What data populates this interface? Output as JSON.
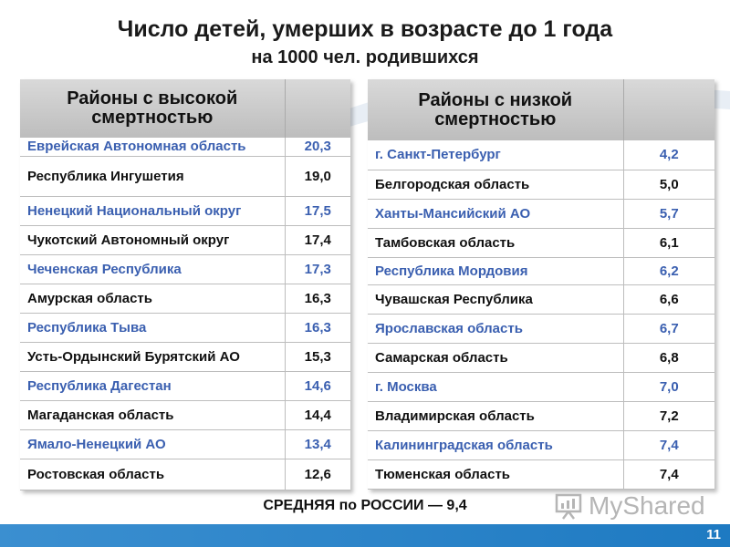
{
  "title": "Число детей, умерших в возрасте до 1 года",
  "subtitle": "на 1000 чел. родившихся",
  "high_table": {
    "header": "Районы с высокой смертностью",
    "rows": [
      {
        "name": "Еврейская Автономная область",
        "value": "20,3",
        "style": "blue"
      },
      {
        "name": "Республика Ингушетия",
        "value": "19,0",
        "style": "black"
      },
      {
        "name": "Ненецкий Национальный округ",
        "value": "17,5",
        "style": "blue"
      },
      {
        "name": "Чукотский Автономный округ",
        "value": "17,4",
        "style": "black"
      },
      {
        "name": "Чеченская Республика",
        "value": "17,3",
        "style": "blue"
      },
      {
        "name": "Амурская область",
        "value": "16,3",
        "style": "black"
      },
      {
        "name": "Республика Тыва",
        "value": "16,3",
        "style": "blue"
      },
      {
        "name": "Усть-Ордынский Бурятский АО",
        "value": "15,3",
        "style": "black"
      },
      {
        "name": "Республика Дагестан",
        "value": "14,6",
        "style": "blue"
      },
      {
        "name": "Магаданская область",
        "value": "14,4",
        "style": "black"
      },
      {
        "name": "Ямало-Ненецкий АО",
        "value": "13,4",
        "style": "blue"
      },
      {
        "name": "Ростовская область",
        "value": "12,6",
        "style": "black"
      }
    ]
  },
  "low_table": {
    "header": "Районы с низкой смертностью",
    "rows": [
      {
        "name": "г. Санкт-Петербург",
        "value": "4,2",
        "style": "blue"
      },
      {
        "name": "Белгородская область",
        "value": "5,0",
        "style": "black"
      },
      {
        "name": "Ханты-Мансийский АО",
        "value": "5,7",
        "style": "blue"
      },
      {
        "name": "Тамбовская область",
        "value": "6,1",
        "style": "black"
      },
      {
        "name": "Республика Мордовия",
        "value": "6,2",
        "style": "blue"
      },
      {
        "name": "Чувашская Республика",
        "value": "6,6",
        "style": "black"
      },
      {
        "name": "Ярославская область",
        "value": "6,7",
        "style": "blue"
      },
      {
        "name": "Самарская область",
        "value": "6,8",
        "style": "black"
      },
      {
        "name": "г. Москва",
        "value": "7,0",
        "style": "blue"
      },
      {
        "name": "Владимирская область",
        "value": "7,2",
        "style": "black"
      },
      {
        "name": "Калининградская область",
        "value": "7,4",
        "style": "blue"
      },
      {
        "name": "Тюменская область",
        "value": "7,4",
        "style": "black"
      }
    ]
  },
  "footer": {
    "label": "СРЕДНЯЯ по РОССИИ",
    "dash": "—",
    "value": "9,4"
  },
  "watermark": "MyShared",
  "page_number": "11",
  "colors": {
    "blue_text": "#3a5fb0",
    "header_bg": "#c8c8c8",
    "bottom_bar": "#2a86cc"
  }
}
